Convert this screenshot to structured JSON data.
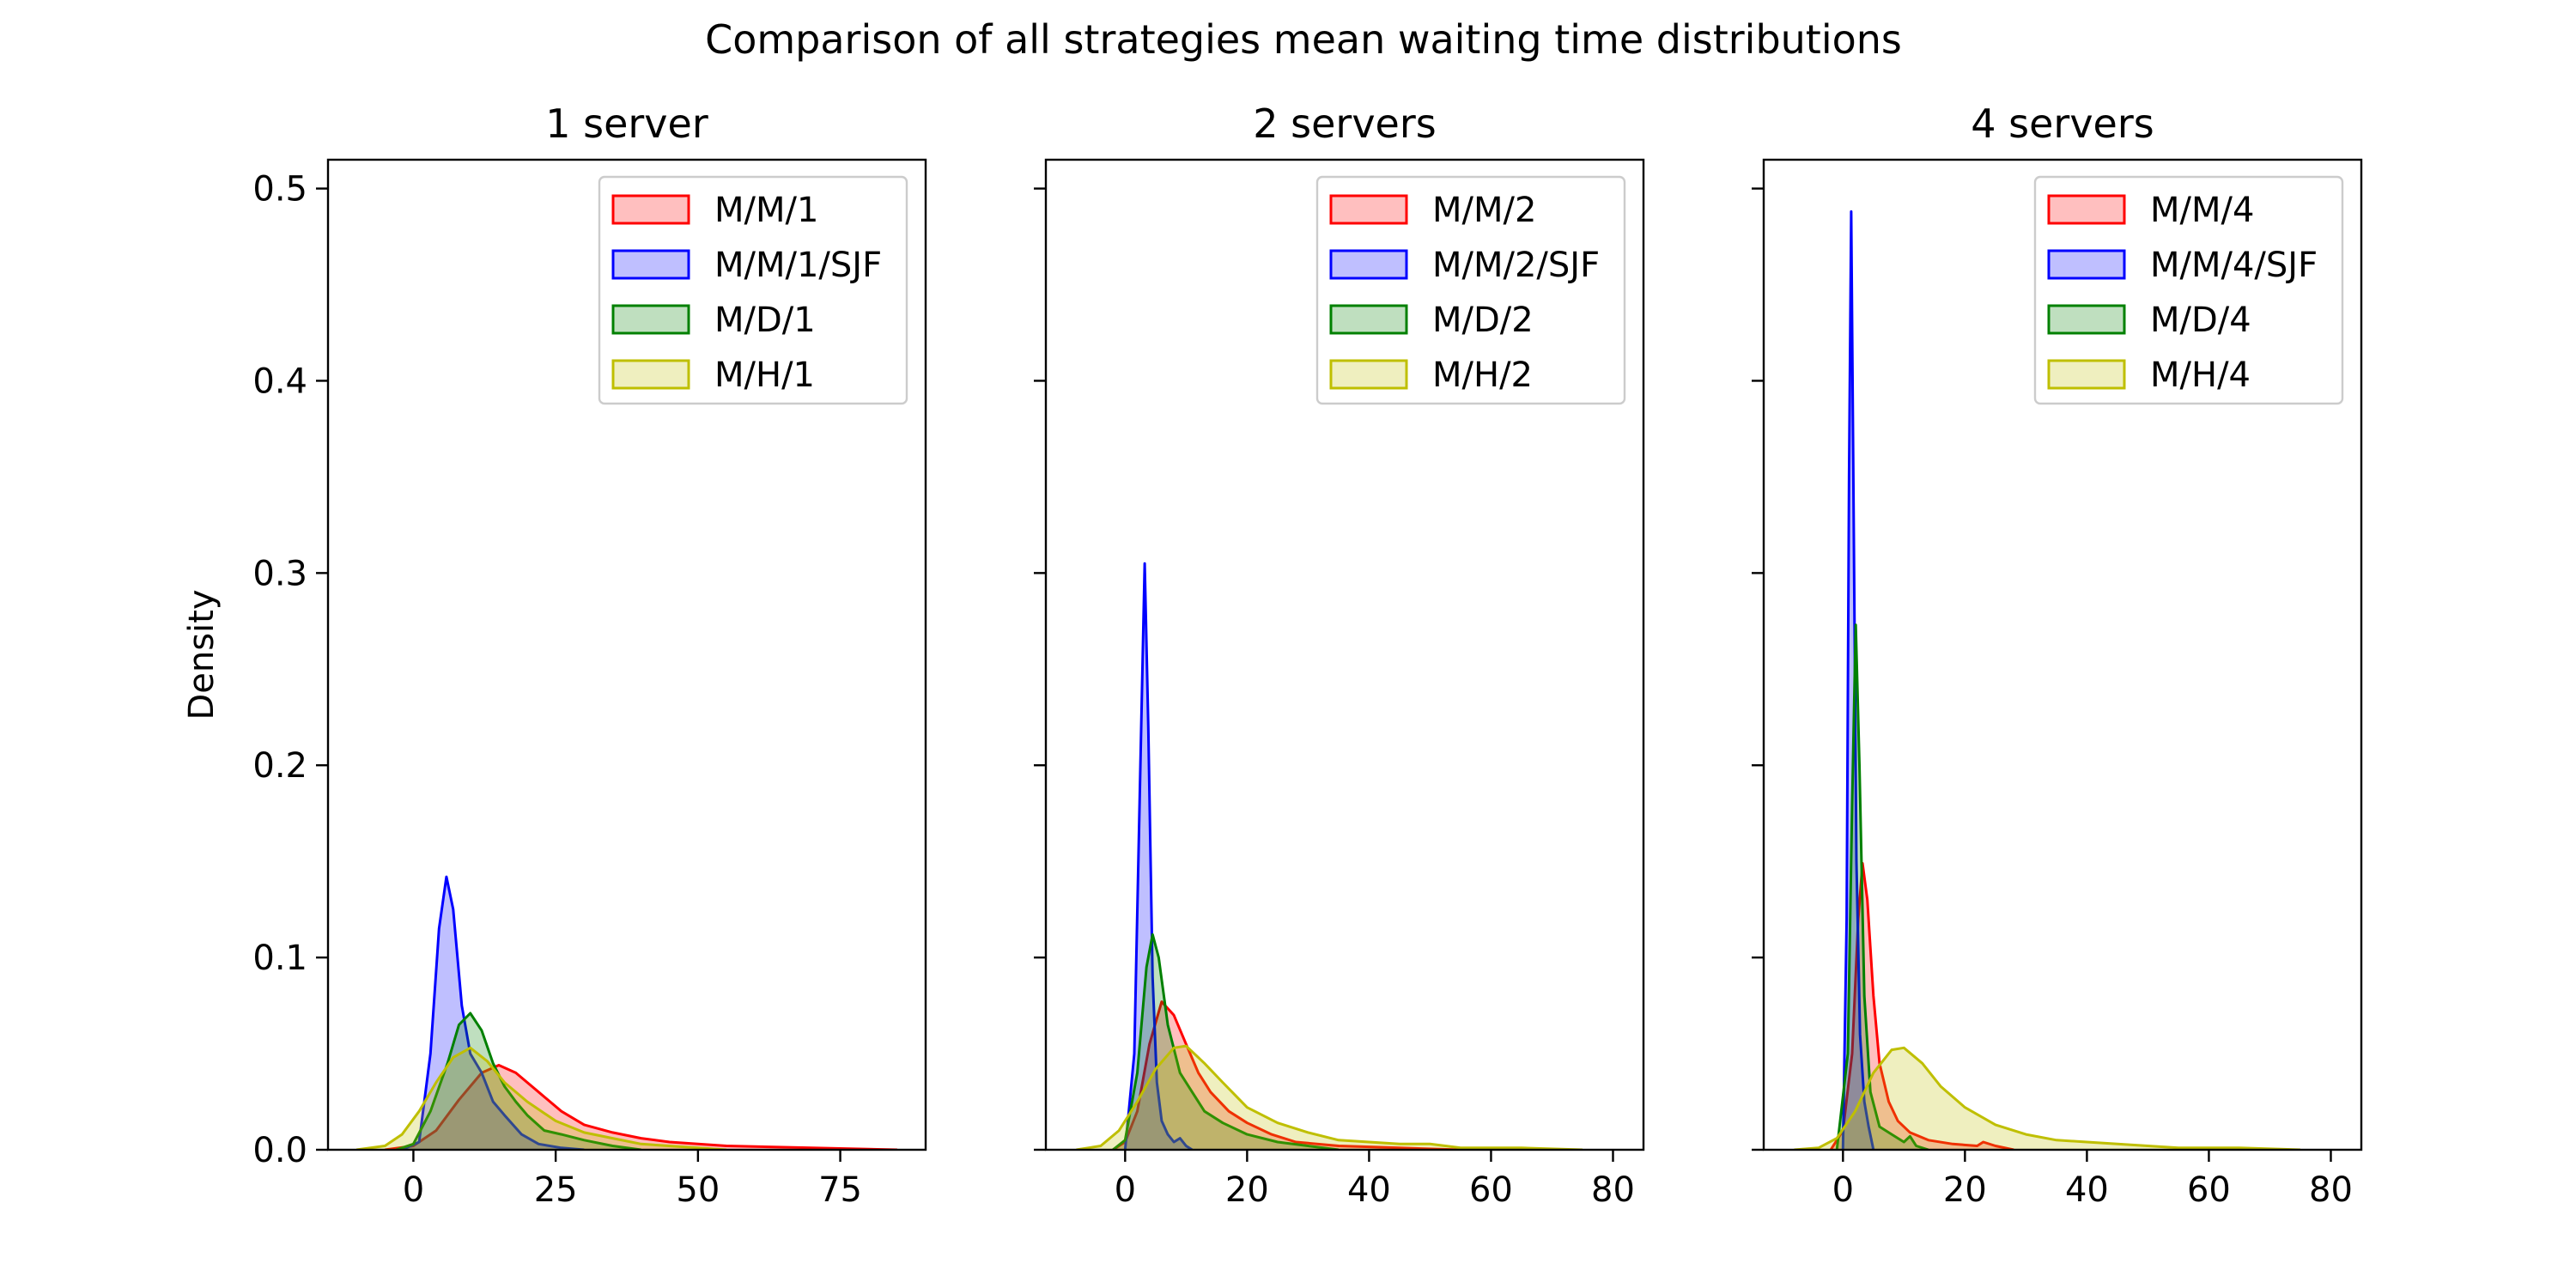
{
  "figure": {
    "title": "Comparison of all strategies mean waiting time distributions"
  },
  "colors": {
    "red": "#ff0000",
    "blue": "#0000ff",
    "green": "#008000",
    "yellow": "#bfbf00"
  },
  "chart_data": [
    {
      "type": "area",
      "title": "1 server",
      "xlabel": "",
      "ylabel": "Density",
      "xlim": [
        -15,
        90
      ],
      "ylim": [
        0,
        0.515
      ],
      "xticks": [
        0,
        25,
        50,
        75
      ],
      "yticks": [
        0.0,
        0.1,
        0.2,
        0.3,
        0.4,
        0.5
      ],
      "ytick_labels": [
        "0.0",
        "0.1",
        "0.2",
        "0.3",
        "0.4",
        "0.5"
      ],
      "grid": false,
      "legend_position": "top-right",
      "series": [
        {
          "name": "M/M/1",
          "color": "red",
          "points": [
            [
              -5,
              0
            ],
            [
              0,
              0.002
            ],
            [
              4,
              0.01
            ],
            [
              8,
              0.026
            ],
            [
              12,
              0.04
            ],
            [
              15,
              0.044
            ],
            [
              18,
              0.04
            ],
            [
              22,
              0.03
            ],
            [
              26,
              0.02
            ],
            [
              30,
              0.013
            ],
            [
              35,
              0.009
            ],
            [
              40,
              0.006
            ],
            [
              45,
              0.004
            ],
            [
              55,
              0.002
            ],
            [
              70,
              0.001
            ],
            [
              80,
              0.0003
            ],
            [
              85,
              0
            ]
          ]
        },
        {
          "name": "M/M/1/SJF",
          "color": "blue",
          "points": [
            [
              -2,
              0
            ],
            [
              1,
              0.004
            ],
            [
              3,
              0.05
            ],
            [
              4.5,
              0.115
            ],
            [
              5.8,
              0.142
            ],
            [
              7,
              0.125
            ],
            [
              8.5,
              0.075
            ],
            [
              10,
              0.05
            ],
            [
              12,
              0.04
            ],
            [
              14,
              0.025
            ],
            [
              16,
              0.018
            ],
            [
              19,
              0.008
            ],
            [
              22,
              0.003
            ],
            [
              26,
              0.001
            ],
            [
              30,
              0
            ]
          ]
        },
        {
          "name": "M/D/1",
          "color": "green",
          "points": [
            [
              -3,
              0
            ],
            [
              0,
              0.003
            ],
            [
              3,
              0.02
            ],
            [
              6,
              0.045
            ],
            [
              8,
              0.065
            ],
            [
              10,
              0.071
            ],
            [
              12,
              0.062
            ],
            [
              14,
              0.045
            ],
            [
              16,
              0.033
            ],
            [
              18,
              0.025
            ],
            [
              20,
              0.018
            ],
            [
              23,
              0.01
            ],
            [
              26,
              0.008
            ],
            [
              30,
              0.005
            ],
            [
              35,
              0.002
            ],
            [
              40,
              0
            ]
          ]
        },
        {
          "name": "M/H/1",
          "color": "yellow",
          "points": [
            [
              -10,
              0
            ],
            [
              -5,
              0.002
            ],
            [
              -2,
              0.008
            ],
            [
              1,
              0.02
            ],
            [
              4,
              0.035
            ],
            [
              7,
              0.048
            ],
            [
              10,
              0.053
            ],
            [
              13,
              0.046
            ],
            [
              16,
              0.035
            ],
            [
              20,
              0.025
            ],
            [
              25,
              0.015
            ],
            [
              30,
              0.009
            ],
            [
              35,
              0.006
            ],
            [
              40,
              0.003
            ],
            [
              50,
              0.001
            ],
            [
              55,
              0
            ]
          ]
        }
      ]
    },
    {
      "type": "area",
      "title": "2 servers",
      "xlabel": "",
      "ylabel": "",
      "xlim": [
        -13,
        85
      ],
      "ylim": [
        0,
        0.515
      ],
      "xticks": [
        0,
        20,
        40,
        60,
        80
      ],
      "yticks": [
        0.0,
        0.1,
        0.2,
        0.3,
        0.4,
        0.5
      ],
      "ytick_labels": [],
      "grid": false,
      "legend_position": "top-right",
      "series": [
        {
          "name": "M/M/2",
          "color": "red",
          "points": [
            [
              -2,
              0
            ],
            [
              0,
              0.004
            ],
            [
              2,
              0.02
            ],
            [
              4,
              0.055
            ],
            [
              6,
              0.077
            ],
            [
              8,
              0.07
            ],
            [
              10,
              0.055
            ],
            [
              12,
              0.04
            ],
            [
              14,
              0.03
            ],
            [
              17,
              0.02
            ],
            [
              20,
              0.014
            ],
            [
              24,
              0.008
            ],
            [
              28,
              0.004
            ],
            [
              35,
              0.002
            ],
            [
              45,
              0.001
            ],
            [
              55,
              0
            ]
          ]
        },
        {
          "name": "M/M/2/SJF",
          "color": "blue",
          "points": [
            [
              0,
              0
            ],
            [
              1.5,
              0.05
            ],
            [
              2.5,
              0.2
            ],
            [
              3.2,
              0.305
            ],
            [
              3.8,
              0.22
            ],
            [
              4.5,
              0.09
            ],
            [
              5.2,
              0.035
            ],
            [
              6,
              0.015
            ],
            [
              7,
              0.008
            ],
            [
              8,
              0.004
            ],
            [
              9,
              0.006
            ],
            [
              10,
              0.002
            ],
            [
              11,
              0
            ]
          ]
        },
        {
          "name": "M/D/2",
          "color": "green",
          "points": [
            [
              -2,
              0
            ],
            [
              0,
              0.005
            ],
            [
              2,
              0.04
            ],
            [
              3.5,
              0.095
            ],
            [
              4.5,
              0.112
            ],
            [
              5.5,
              0.1
            ],
            [
              7,
              0.065
            ],
            [
              9,
              0.04
            ],
            [
              11,
              0.03
            ],
            [
              13,
              0.02
            ],
            [
              16,
              0.014
            ],
            [
              20,
              0.008
            ],
            [
              25,
              0.004
            ],
            [
              30,
              0.002
            ],
            [
              35,
              0
            ]
          ]
        },
        {
          "name": "M/H/2",
          "color": "yellow",
          "points": [
            [
              -8,
              0
            ],
            [
              -4,
              0.002
            ],
            [
              -1,
              0.01
            ],
            [
              2,
              0.025
            ],
            [
              5,
              0.042
            ],
            [
              8,
              0.053
            ],
            [
              10,
              0.054
            ],
            [
              13,
              0.045
            ],
            [
              16,
              0.035
            ],
            [
              20,
              0.022
            ],
            [
              25,
              0.014
            ],
            [
              30,
              0.009
            ],
            [
              35,
              0.005
            ],
            [
              45,
              0.003
            ],
            [
              50,
              0.003
            ],
            [
              55,
              0.001
            ],
            [
              65,
              0.001
            ],
            [
              75,
              0
            ]
          ]
        }
      ]
    },
    {
      "type": "area",
      "title": "4 servers",
      "xlabel": "",
      "ylabel": "",
      "xlim": [
        -13,
        85
      ],
      "ylim": [
        0,
        0.515
      ],
      "xticks": [
        0,
        20,
        40,
        60,
        80
      ],
      "yticks": [
        0.0,
        0.1,
        0.2,
        0.3,
        0.4,
        0.5
      ],
      "ytick_labels": [],
      "grid": false,
      "legend_position": "top-right",
      "series": [
        {
          "name": "M/M/4",
          "color": "red",
          "points": [
            [
              -2,
              0
            ],
            [
              0,
              0.01
            ],
            [
              1.5,
              0.05
            ],
            [
              2.5,
              0.12
            ],
            [
              3.2,
              0.149
            ],
            [
              4,
              0.13
            ],
            [
              5,
              0.08
            ],
            [
              6,
              0.045
            ],
            [
              7.5,
              0.025
            ],
            [
              9,
              0.015
            ],
            [
              11,
              0.009
            ],
            [
              14,
              0.005
            ],
            [
              18,
              0.003
            ],
            [
              22,
              0.002
            ],
            [
              23,
              0.004
            ],
            [
              25,
              0.002
            ],
            [
              28,
              0
            ]
          ]
        },
        {
          "name": "M/M/4/SJF",
          "color": "blue",
          "points": [
            [
              0,
              0
            ],
            [
              0.6,
              0.12
            ],
            [
              1.0,
              0.35
            ],
            [
              1.35,
              0.488
            ],
            [
              1.7,
              0.35
            ],
            [
              2.2,
              0.15
            ],
            [
              2.8,
              0.06
            ],
            [
              3.5,
              0.025
            ],
            [
              4.2,
              0.012
            ],
            [
              5,
              0
            ]
          ]
        },
        {
          "name": "M/D/4",
          "color": "green",
          "points": [
            [
              -1,
              0
            ],
            [
              0.8,
              0.05
            ],
            [
              1.5,
              0.18
            ],
            [
              2.1,
              0.273
            ],
            [
              2.7,
              0.2
            ],
            [
              3.5,
              0.08
            ],
            [
              4.5,
              0.03
            ],
            [
              6,
              0.012
            ],
            [
              8,
              0.008
            ],
            [
              10,
              0.004
            ],
            [
              11,
              0.007
            ],
            [
              12,
              0.002
            ],
            [
              14,
              0
            ]
          ]
        },
        {
          "name": "M/H/4",
          "color": "yellow",
          "points": [
            [
              -8,
              0
            ],
            [
              -4,
              0.001
            ],
            [
              -1,
              0.006
            ],
            [
              2,
              0.02
            ],
            [
              5,
              0.04
            ],
            [
              8,
              0.052
            ],
            [
              10,
              0.053
            ],
            [
              13,
              0.045
            ],
            [
              16,
              0.033
            ],
            [
              20,
              0.022
            ],
            [
              25,
              0.013
            ],
            [
              30,
              0.008
            ],
            [
              35,
              0.005
            ],
            [
              40,
              0.004
            ],
            [
              45,
              0.003
            ],
            [
              50,
              0.002
            ],
            [
              55,
              0.001
            ],
            [
              65,
              0.001
            ],
            [
              75,
              0
            ]
          ]
        }
      ]
    }
  ]
}
